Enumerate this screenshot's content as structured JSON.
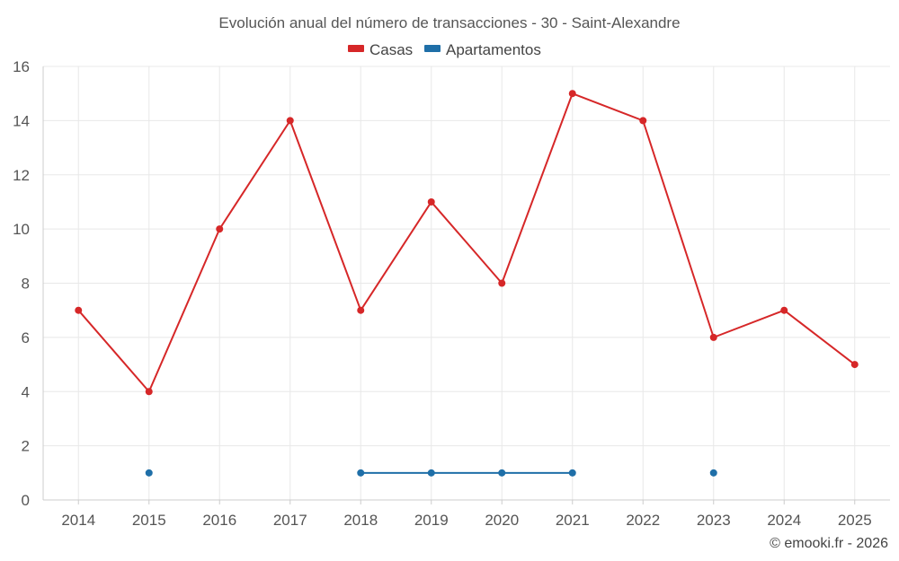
{
  "chart_data": {
    "type": "line",
    "title": "Evolución anual del número de transacciones - 30 - Saint-Alexandre",
    "x": [
      "2014",
      "2015",
      "2016",
      "2017",
      "2018",
      "2019",
      "2020",
      "2021",
      "2022",
      "2023",
      "2024",
      "2025"
    ],
    "series": [
      {
        "name": "Casas",
        "color": "#d62728",
        "values": [
          7,
          4,
          10,
          14,
          7,
          11,
          8,
          15,
          14,
          6,
          7,
          5
        ]
      },
      {
        "name": "Apartamentos",
        "color": "#1f6fa8",
        "values": [
          null,
          1,
          null,
          null,
          1,
          1,
          1,
          1,
          null,
          1,
          null,
          null
        ]
      }
    ],
    "yticks": [
      "0",
      "2",
      "4",
      "6",
      "8",
      "10",
      "12",
      "14",
      "16"
    ],
    "ylim": [
      0,
      16
    ],
    "grid": true,
    "legend_position": "top-center"
  },
  "credit": "© emooki.fr - 2026"
}
